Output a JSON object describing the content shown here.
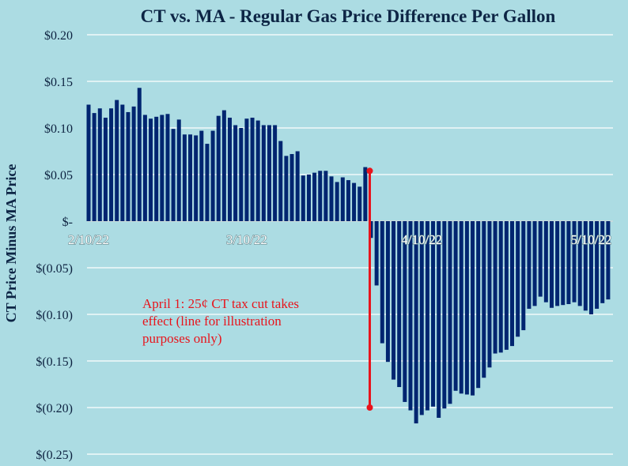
{
  "chart_data": {
    "type": "bar",
    "title": "CT vs. MA - Regular Gas Price Difference Per Gallon",
    "xlabel": "",
    "ylabel": "CT Price Minus MA Price",
    "ylim": [
      -0.25,
      0.2
    ],
    "yticks": [
      0.2,
      0.15,
      0.1,
      0.05,
      0,
      -0.05,
      -0.1,
      -0.15,
      -0.2,
      -0.25
    ],
    "ytick_labels": [
      "$0.20",
      "$0.15",
      "$0.10",
      "$0.05",
      "$-",
      "$(0.05)",
      "$(0.10)",
      "$(0.15)",
      "$(0.20)",
      "$(0.25)"
    ],
    "x_start": "2022-02-10",
    "x_end": "2022-05-13",
    "xtick_labels": [
      {
        "label": "2/10/22",
        "date": "2022-02-10"
      },
      {
        "label": "3/10/22",
        "date": "2022-03-10"
      },
      {
        "label": "4/10/22",
        "date": "2022-04-10"
      },
      {
        "label": "5/10/22",
        "date": "2022-05-10"
      }
    ],
    "grid": true,
    "bar_color": "#002570",
    "values": [
      0.125,
      0.116,
      0.121,
      0.111,
      0.121,
      0.13,
      0.125,
      0.117,
      0.123,
      0.143,
      0.114,
      0.11,
      0.112,
      0.114,
      0.115,
      0.099,
      0.109,
      0.093,
      0.093,
      0.092,
      0.097,
      0.083,
      0.097,
      0.113,
      0.119,
      0.111,
      0.103,
      0.1,
      0.11,
      0.111,
      0.108,
      0.103,
      0.103,
      0.103,
      0.086,
      0.07,
      0.072,
      0.075,
      0.049,
      0.05,
      0.052,
      0.054,
      0.054,
      0.048,
      0.042,
      0.047,
      0.044,
      0.041,
      0.037,
      0.058,
      -0.018,
      -0.069,
      -0.131,
      -0.151,
      -0.17,
      -0.178,
      -0.194,
      -0.203,
      -0.217,
      -0.208,
      -0.203,
      -0.199,
      -0.211,
      -0.201,
      -0.196,
      -0.182,
      -0.185,
      -0.186,
      -0.187,
      -0.179,
      -0.168,
      -0.157,
      -0.142,
      -0.141,
      -0.138,
      -0.134,
      -0.124,
      -0.117,
      -0.094,
      -0.091,
      -0.081,
      -0.087,
      -0.093,
      -0.091,
      -0.09,
      -0.089,
      -0.087,
      -0.091,
      -0.096,
      -0.1,
      -0.094,
      -0.088,
      -0.084
    ],
    "annotation": {
      "lines": [
        "April 1: 25¢ CT tax cut takes",
        "effect (line for illustration",
        "purposes only)"
      ],
      "color": "#e8141c",
      "marker_date": "2022-04-01",
      "marker_range": [
        0.054,
        -0.2
      ]
    }
  }
}
